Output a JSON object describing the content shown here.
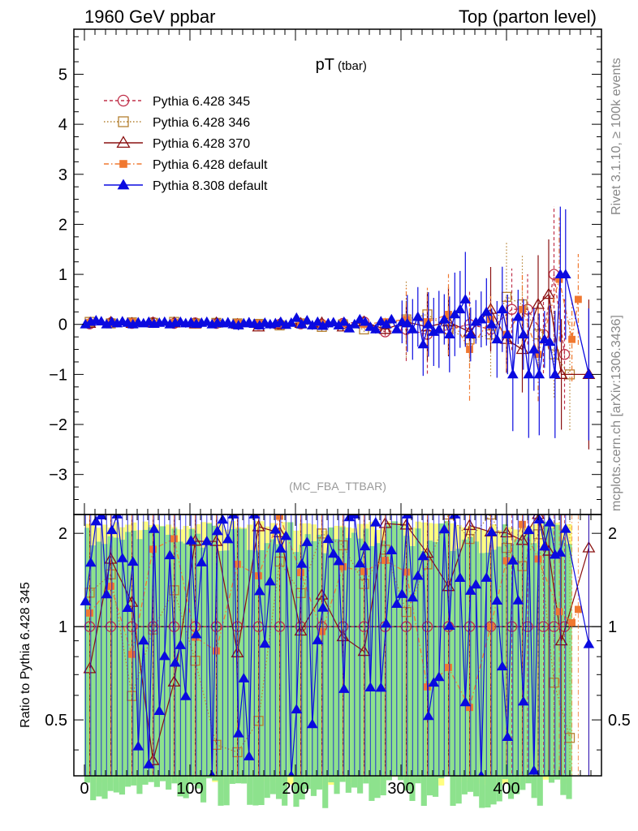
{
  "header": {
    "left": "1960 GeV ppbar",
    "right": "Top (parton level)"
  },
  "side": {
    "rivet": "Rivet 3.1.10, ≥ 100k events",
    "mcplots": "mcplots.cern.ch [arXiv:1306.3436]"
  },
  "chart_data": {
    "type": "scatter",
    "title": "pT",
    "title_sub": "(tbar)",
    "analysis": "(MC_FBA_TTBAR)",
    "legend_position": "top-left",
    "main": {
      "ylim": [
        -3.8,
        5.9
      ],
      "yticks": [
        "-3",
        "-2",
        "-1",
        "0",
        "1",
        "2",
        "3",
        "4",
        "5"
      ],
      "ytick_values": [
        -3,
        -2,
        -1,
        0,
        1,
        2,
        3,
        4,
        5
      ]
    },
    "ratio": {
      "ylabel": "Ratio to Pythia 6.428 345",
      "ylim": [
        0.33,
        2.3
      ],
      "yticks": [
        "0.5",
        "1",
        "2"
      ],
      "ytick_values": [
        0.5,
        1,
        2
      ],
      "reference": 1
    },
    "x": {
      "xlim": [
        -10,
        490
      ],
      "xticks": [
        "0",
        "100",
        "200",
        "300",
        "400"
      ],
      "xtick_values": [
        0,
        100,
        200,
        300,
        400
      ]
    },
    "series": [
      {
        "name": "Pythia 6.428 345",
        "color": "#c0304a",
        "marker": "circle-open",
        "dash": "4,3",
        "points": [
          [
            5,
            0.01
          ],
          [
            25,
            0.03
          ],
          [
            45,
            0.02
          ],
          [
            65,
            0.04
          ],
          [
            85,
            0.02
          ],
          [
            105,
            0.03
          ],
          [
            125,
            0.02
          ],
          [
            145,
            0.01
          ],
          [
            165,
            0.0
          ],
          [
            185,
            0.0
          ],
          [
            205,
            0.01
          ],
          [
            225,
            0.0
          ],
          [
            245,
            0.02
          ],
          [
            265,
            0.05
          ],
          [
            285,
            -0.15
          ],
          [
            305,
            -0.1
          ],
          [
            325,
            -0.2
          ],
          [
            345,
            -0.1
          ],
          [
            365,
            0.0
          ],
          [
            385,
            -0.1
          ],
          [
            405,
            0.3
          ],
          [
            420,
            0.3
          ],
          [
            435,
            -0.2
          ],
          [
            445,
            1.0
          ],
          [
            455,
            -0.6
          ]
        ]
      },
      {
        "name": "Pythia 6.428 346",
        "color": "#b48030",
        "marker": "square-open",
        "dash": "1.5,2.5",
        "points": [
          [
            5,
            0.05
          ],
          [
            25,
            0.02
          ],
          [
            45,
            0.04
          ],
          [
            65,
            0.03
          ],
          [
            85,
            0.05
          ],
          [
            105,
            0.02
          ],
          [
            125,
            0.03
          ],
          [
            145,
            0.02
          ],
          [
            165,
            0.01
          ],
          [
            185,
            -0.02
          ],
          [
            205,
            0.02
          ],
          [
            225,
            -0.05
          ],
          [
            245,
            0.0
          ],
          [
            265,
            -0.1
          ],
          [
            285,
            0.0
          ],
          [
            305,
            0.1
          ],
          [
            325,
            0.2
          ],
          [
            345,
            -0.1
          ],
          [
            365,
            -0.3
          ],
          [
            385,
            -0.2
          ],
          [
            400,
            0.55
          ],
          [
            415,
            0.4
          ],
          [
            430,
            -0.2
          ],
          [
            445,
            -0.6
          ],
          [
            460,
            -1.0
          ]
        ]
      },
      {
        "name": "Pythia 6.428 370",
        "color": "#8a1010",
        "marker": "triangle-open",
        "dash": "",
        "points": [
          [
            5,
            0.02
          ],
          [
            25,
            0.04
          ],
          [
            45,
            0.02
          ],
          [
            65,
            0.03
          ],
          [
            85,
            0.03
          ],
          [
            105,
            0.01
          ],
          [
            125,
            0.03
          ],
          [
            145,
            0.0
          ],
          [
            165,
            -0.05
          ],
          [
            185,
            0.0
          ],
          [
            205,
            0.02
          ],
          [
            225,
            0.03
          ],
          [
            245,
            -0.05
          ],
          [
            265,
            0.05
          ],
          [
            285,
            -0.1
          ],
          [
            305,
            0.05
          ],
          [
            325,
            -0.05
          ],
          [
            345,
            0.05
          ],
          [
            365,
            -0.15
          ],
          [
            385,
            0.3
          ],
          [
            400,
            -0.3
          ],
          [
            415,
            -0.5
          ],
          [
            430,
            0.4
          ],
          [
            440,
            0.6
          ],
          [
            452,
            -1.0
          ],
          [
            478,
            -1.0
          ]
        ]
      },
      {
        "name": "Pythia 6.428 default",
        "color": "#f07830",
        "marker": "square-filled",
        "dash": "6,3,1.5,3",
        "points": [
          [
            5,
            0.04
          ],
          [
            25,
            0.02
          ],
          [
            45,
            0.05
          ],
          [
            65,
            0.02
          ],
          [
            85,
            0.04
          ],
          [
            105,
            0.03
          ],
          [
            125,
            0.01
          ],
          [
            145,
            0.03
          ],
          [
            165,
            0.02
          ],
          [
            185,
            0.0
          ],
          [
            205,
            0.03
          ],
          [
            225,
            0.01
          ],
          [
            245,
            0.02
          ],
          [
            265,
            0.0
          ],
          [
            285,
            0.05
          ],
          [
            305,
            0.1
          ],
          [
            325,
            0.05
          ],
          [
            345,
            0.2
          ],
          [
            365,
            -0.5
          ],
          [
            385,
            0.1
          ],
          [
            400,
            -0.2
          ],
          [
            415,
            0.3
          ],
          [
            430,
            -0.6
          ],
          [
            450,
            0.9
          ],
          [
            462,
            -0.3
          ],
          [
            468,
            0.5
          ]
        ]
      },
      {
        "name": "Pythia 8.308 default",
        "color": "#0a0ae0",
        "marker": "triangle-filled",
        "dash": "",
        "points": [
          [
            1,
            0.0
          ],
          [
            6,
            0.05
          ],
          [
            11,
            0.08
          ],
          [
            16,
            0.06
          ],
          [
            21,
            0.0
          ],
          [
            26,
            0.05
          ],
          [
            31,
            0.02
          ],
          [
            36,
            0.06
          ],
          [
            41,
            0.03
          ],
          [
            46,
            0.0
          ],
          [
            51,
            0.04
          ],
          [
            56,
            0.02
          ],
          [
            61,
            0.05
          ],
          [
            66,
            0.01
          ],
          [
            71,
            0.03
          ],
          [
            76,
            0.05
          ],
          [
            81,
            0.0
          ],
          [
            86,
            0.03
          ],
          [
            91,
            0.05
          ],
          [
            96,
            0.02
          ],
          [
            101,
            0.04
          ],
          [
            106,
            0.01
          ],
          [
            111,
            0.03
          ],
          [
            116,
            0.05
          ],
          [
            121,
            0.0
          ],
          [
            126,
            0.03
          ],
          [
            131,
            0.02
          ],
          [
            136,
            0.04
          ],
          [
            141,
            0.0
          ],
          [
            146,
            -0.02
          ],
          [
            151,
            0.02
          ],
          [
            156,
            0.04
          ],
          [
            161,
            0.01
          ],
          [
            166,
            -0.02
          ],
          [
            171,
            0.03
          ],
          [
            176,
            0.0
          ],
          [
            181,
            0.02
          ],
          [
            186,
            0.05
          ],
          [
            191,
            -0.01
          ],
          [
            196,
            0.03
          ],
          [
            201,
            0.13
          ],
          [
            206,
            0.0
          ],
          [
            211,
            0.08
          ],
          [
            216,
            -0.02
          ],
          [
            221,
            0.05
          ],
          [
            226,
            -0.03
          ],
          [
            231,
            0.02
          ],
          [
            236,
            0.04
          ],
          [
            241,
            -0.02
          ],
          [
            246,
            0.05
          ],
          [
            251,
            -0.08
          ],
          [
            256,
            0.0
          ],
          [
            261,
            0.1
          ],
          [
            266,
            0.05
          ],
          [
            271,
            -0.05
          ],
          [
            276,
            -0.1
          ],
          [
            281,
            0.06
          ],
          [
            286,
            0.0
          ],
          [
            291,
            0.1
          ],
          [
            296,
            -0.1
          ],
          [
            301,
            0.05
          ],
          [
            306,
            0.02
          ],
          [
            311,
            -0.1
          ],
          [
            316,
            0.15
          ],
          [
            321,
            -0.4
          ],
          [
            326,
            0.0
          ],
          [
            331,
            -0.15
          ],
          [
            336,
            -0.1
          ],
          [
            341,
            0.1
          ],
          [
            346,
            -0.2
          ],
          [
            351,
            0.2
          ],
          [
            356,
            0.3
          ],
          [
            361,
            0.5
          ],
          [
            366,
            -0.2
          ],
          [
            371,
            0.05
          ],
          [
            376,
            0.1
          ],
          [
            381,
            0.25
          ],
          [
            386,
            0.0
          ],
          [
            391,
            -0.3
          ],
          [
            396,
            0.3
          ],
          [
            401,
            -0.2
          ],
          [
            406,
            -1.0
          ],
          [
            411,
            0.15
          ],
          [
            416,
            -0.2
          ],
          [
            421,
            -1.0
          ],
          [
            426,
            -0.5
          ],
          [
            431,
            -1.0
          ],
          [
            436,
            -0.3
          ],
          [
            441,
            -0.35
          ],
          [
            446,
            -1.0
          ],
          [
            451,
            1.0
          ],
          [
            456,
            1.0
          ],
          [
            478,
            -1.0
          ]
        ]
      }
    ]
  }
}
